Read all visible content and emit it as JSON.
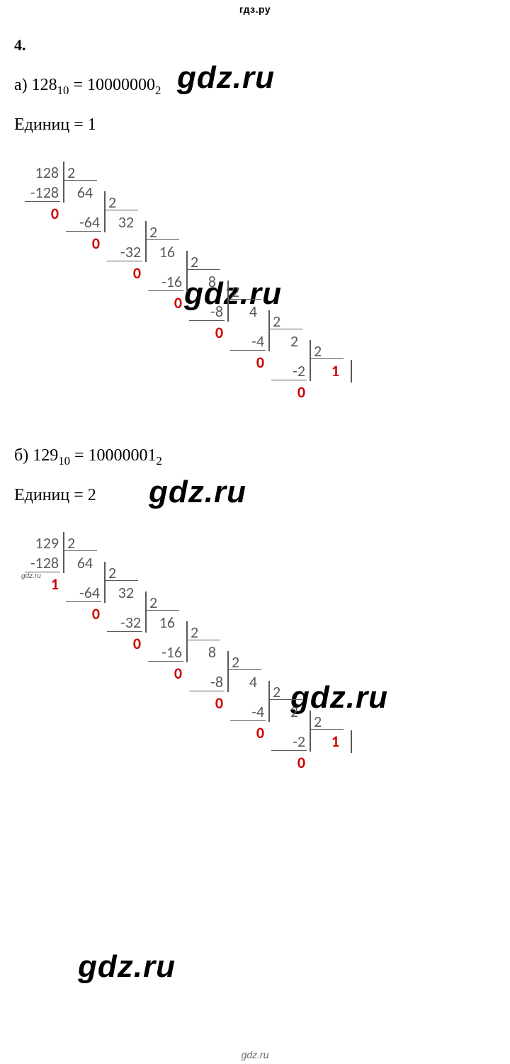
{
  "header": "гдз.ру",
  "footer": "gdz.ru",
  "watermark": "gdz.ru",
  "question": {
    "number": "4."
  },
  "partA": {
    "label": "а)",
    "decimal": "128",
    "decBase": "10",
    "binary": "10000000",
    "binBase": "2",
    "eq": "=",
    "unitsLabel": "Единиц =",
    "unitsValue": "1",
    "cascade": {
      "steps": [
        {
          "dividend": "128",
          "sub": "-128",
          "rem": "0",
          "div": "2",
          "quot": "64"
        },
        {
          "dividend": "64",
          "sub": "-64",
          "rem": "0",
          "div": "2",
          "quot": "32"
        },
        {
          "dividend": "32",
          "sub": "-32",
          "rem": "0",
          "div": "2",
          "quot": "16"
        },
        {
          "dividend": "16",
          "sub": "-16",
          "rem": "0",
          "div": "2",
          "quot": "8"
        },
        {
          "dividend": "8",
          "sub": "-8",
          "rem": "0",
          "div": "2",
          "quot": "4"
        },
        {
          "dividend": "4",
          "sub": "-4",
          "rem": "0",
          "div": "2",
          "quot": "2"
        },
        {
          "dividend": "2",
          "sub": "-2",
          "rem": "0",
          "div": "2",
          "quot": "1"
        }
      ],
      "finalColor": "#d00000",
      "numColor": "#5a5a5a",
      "lineColor": "#5a5a5a",
      "fontSize": 22
    }
  },
  "partB": {
    "label": "б)",
    "decimal": "129",
    "decBase": "10",
    "binary": "10000001",
    "binBase": "2",
    "eq": "=",
    "unitsLabel": "Единиц =",
    "unitsValue": "2",
    "cascade": {
      "steps": [
        {
          "dividend": "129",
          "sub": "-128",
          "rem": "1",
          "div": "2",
          "quot": "64"
        },
        {
          "dividend": "64",
          "sub": "-64",
          "rem": "0",
          "div": "2",
          "quot": "32"
        },
        {
          "dividend": "32",
          "sub": "-32",
          "rem": "0",
          "div": "2",
          "quot": "16"
        },
        {
          "dividend": "16",
          "sub": "-16",
          "rem": "0",
          "div": "2",
          "quot": "8"
        },
        {
          "dividend": "8",
          "sub": "-8",
          "rem": "0",
          "div": "2",
          "quot": "4"
        },
        {
          "dividend": "4",
          "sub": "-4",
          "rem": "0",
          "div": "2",
          "quot": "2"
        },
        {
          "dividend": "2",
          "sub": "-2",
          "rem": "0",
          "div": "2",
          "quot": "1"
        }
      ],
      "finalColor": "#d00000",
      "numColor": "#5a5a5a",
      "lineColor": "#5a5a5a",
      "fontSize": 22
    }
  }
}
